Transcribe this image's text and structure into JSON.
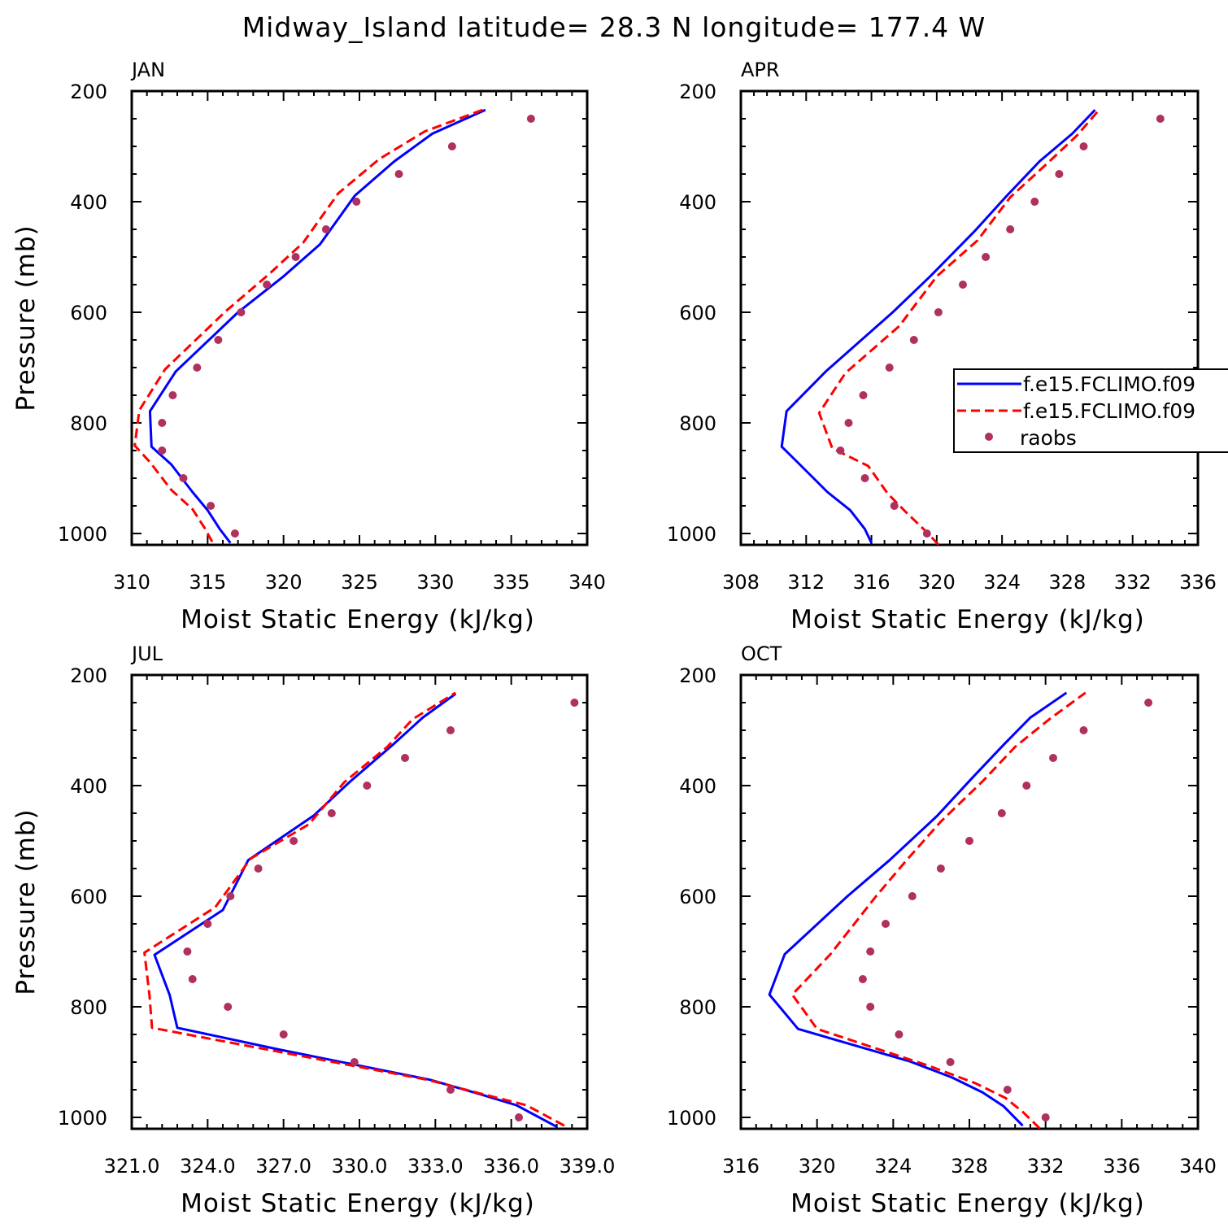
{
  "title": "Midway_Island  latitude= 28.3 N longitude= 177.4 W",
  "legend": {
    "entries": [
      {
        "label": "f.e15.FCLIMO.f09",
        "color": "#0000ff",
        "style": "solid"
      },
      {
        "label": "f.e15.FCLIMO.f09",
        "color": "#ff0000",
        "style": "dashed"
      },
      {
        "label": "raobs",
        "color": "#b03060",
        "style": "dots"
      }
    ],
    "placement": "APR panel, right side, clipped at figure edge"
  },
  "chart_data": [
    {
      "type": "line",
      "panel": "JAN",
      "xlabel": "Moist Static Energy (kJ/kg)",
      "ylabel": "Pressure (mb)",
      "xlim": [
        310,
        340
      ],
      "ylim": [
        1025,
        200
      ],
      "xticks": [
        310,
        315,
        320,
        325,
        330,
        335,
        340
      ],
      "xtick_labels": [
        "310",
        "315",
        "320",
        "325",
        "330",
        "335",
        "340"
      ],
      "yticks": [
        200,
        400,
        600,
        800,
        1000
      ],
      "series": [
        {
          "name": "f.e15.FCLIMO.f09 (blue)",
          "pressure": [
            1017,
            992,
            958,
            925,
            875,
            843,
            779,
            707,
            600,
            535,
            477,
            389,
            327,
            277,
            234
          ],
          "x": [
            316.5,
            315.8,
            315.0,
            314.0,
            312.6,
            311.3,
            311.2,
            312.9,
            317.0,
            320.0,
            322.4,
            324.7,
            327.3,
            329.8,
            333.3
          ]
        },
        {
          "name": "f.e15.FCLIMO.f09 (red dashed)",
          "pressure": [
            1015,
            990,
            956,
            921,
            871,
            841,
            777,
            703,
            598,
            532,
            474,
            385,
            323,
            273,
            232
          ],
          "x": [
            315.3,
            314.8,
            314.0,
            312.6,
            311.2,
            310.2,
            310.5,
            312.2,
            316.2,
            319.0,
            321.3,
            323.6,
            326.3,
            329.3,
            333.3
          ]
        },
        {
          "name": "raobs",
          "pressure": [
            1000,
            950,
            900,
            850,
            800,
            750,
            700,
            650,
            600,
            550,
            500,
            450,
            400,
            350,
            300,
            250
          ],
          "x": [
            316.8,
            315.2,
            313.4,
            312.0,
            312.0,
            312.7,
            314.3,
            315.7,
            317.2,
            318.9,
            320.8,
            322.8,
            324.8,
            327.6,
            331.1,
            336.3
          ]
        }
      ]
    },
    {
      "type": "line",
      "panel": "APR",
      "xlabel": "Moist Static Energy (kJ/kg)",
      "ylabel": "",
      "xlim": [
        308,
        336
      ],
      "ylim": [
        1025,
        200
      ],
      "xticks": [
        308,
        312,
        316,
        320,
        324,
        328,
        332,
        336
      ],
      "xtick_labels": [
        "308",
        "312",
        "316",
        "320",
        "324",
        "328",
        "332",
        "336"
      ],
      "yticks": [
        200,
        400,
        600,
        800,
        1000
      ],
      "series": [
        {
          "name": "f.e15.FCLIMO.f09 (blue)",
          "pressure": [
            1017,
            992,
            958,
            925,
            875,
            843,
            779,
            707,
            600,
            535,
            454,
            389,
            327,
            277,
            234
          ],
          "x": [
            316.0,
            315.6,
            314.7,
            313.3,
            311.6,
            310.5,
            310.8,
            313.2,
            317.3,
            319.6,
            322.3,
            324.3,
            326.3,
            328.3,
            329.7
          ]
        },
        {
          "name": "f.e15.FCLIMO.f09 (red dashed)",
          "pressure": [
            1020,
            995,
            961,
            928,
            878,
            846,
            782,
            710,
            625,
            535,
            470,
            392,
            330,
            280,
            232
          ],
          "x": [
            320.1,
            319.3,
            318.1,
            317.0,
            315.8,
            313.6,
            312.8,
            314.4,
            317.7,
            320.0,
            322.5,
            324.5,
            326.8,
            328.6,
            330.0
          ]
        },
        {
          "name": "raobs",
          "pressure": [
            1000,
            950,
            900,
            850,
            800,
            750,
            700,
            650,
            600,
            550,
            500,
            450,
            400,
            350,
            300,
            250
          ],
          "x": [
            319.4,
            317.4,
            315.6,
            314.1,
            314.6,
            315.5,
            317.1,
            318.6,
            320.1,
            321.6,
            323.0,
            324.5,
            326.0,
            327.5,
            329.0,
            333.7
          ]
        }
      ]
    },
    {
      "type": "line",
      "panel": "JUL",
      "xlabel": "Moist Static Energy (kJ/kg)",
      "ylabel": "Pressure (mb)",
      "xlim": [
        321,
        339
      ],
      "ylim": [
        1025,
        200
      ],
      "xticks": [
        321,
        324,
        327,
        330,
        333,
        336,
        339
      ],
      "xtick_labels": [
        "321.0",
        "324.0",
        "327.0",
        "330.0",
        "333.0",
        "336.0",
        "339.0"
      ],
      "yticks": [
        200,
        400,
        600,
        800,
        1000
      ],
      "series": [
        {
          "name": "f.e15.FCLIMO.f09 (blue)",
          "pressure": [
            1017,
            978,
            957,
            932,
            877,
            838,
            779,
            706,
            625,
            535,
            454,
            394,
            327,
            277,
            234
          ],
          "x": [
            337.8,
            336.2,
            334.7,
            332.8,
            326.8,
            322.8,
            322.5,
            321.9,
            324.6,
            325.6,
            328.2,
            329.6,
            331.3,
            332.5,
            333.8
          ]
        },
        {
          "name": "f.e15.FCLIMO.f09 (red dashed)",
          "pressure": [
            1015,
            978,
            957,
            932,
            882,
            838,
            779,
            702,
            620,
            532,
            470,
            394,
            330,
            280,
            232
          ],
          "x": [
            338.1,
            336.6,
            334.8,
            332.7,
            326.9,
            321.8,
            321.7,
            321.5,
            324.3,
            325.7,
            328.0,
            329.4,
            331.1,
            332.1,
            333.8
          ]
        },
        {
          "name": "raobs",
          "pressure": [
            1000,
            950,
            900,
            850,
            800,
            750,
            700,
            650,
            600,
            550,
            500,
            450,
            400,
            350,
            300,
            250
          ],
          "x": [
            336.3,
            333.6,
            329.8,
            327.0,
            324.8,
            323.4,
            323.2,
            324.0,
            324.9,
            326.0,
            327.4,
            328.9,
            330.3,
            331.8,
            333.6,
            338.5
          ]
        }
      ]
    },
    {
      "type": "line",
      "panel": "OCT",
      "xlabel": "Moist Static Energy (kJ/kg)",
      "ylabel": "",
      "xlim": [
        316,
        340
      ],
      "ylim": [
        1025,
        200
      ],
      "xticks": [
        316,
        320,
        324,
        328,
        332,
        336,
        340
      ],
      "xtick_labels": [
        "316",
        "320",
        "324",
        "328",
        "332",
        "336",
        "340"
      ],
      "yticks": [
        200,
        400,
        600,
        800,
        1000
      ],
      "series": [
        {
          "name": "f.e15.FCLIMO.f09 (blue)",
          "pressure": [
            1015,
            980,
            955,
            928,
            899,
            840,
            778,
            705,
            600,
            535,
            455,
            388,
            326,
            277,
            232
          ],
          "x": [
            330.8,
            329.8,
            328.7,
            327.1,
            324.9,
            319.0,
            317.5,
            318.3,
            321.6,
            323.8,
            326.3,
            328.1,
            329.8,
            331.2,
            333.1
          ]
        },
        {
          "name": "f.e15.FCLIMO.f09 (red dashed)",
          "pressure": [
            1020,
            990,
            965,
            938,
            907,
            840,
            778,
            705,
            600,
            535,
            465,
            392,
            330,
            280,
            232
          ],
          "x": [
            331.7,
            330.8,
            329.9,
            328.3,
            325.9,
            320.0,
            318.7,
            320.7,
            323.1,
            324.7,
            326.5,
            328.7,
            330.4,
            332.2,
            334.1
          ]
        },
        {
          "name": "raobs",
          "pressure": [
            1000,
            950,
            900,
            850,
            800,
            750,
            700,
            650,
            600,
            550,
            500,
            450,
            400,
            350,
            300,
            250
          ],
          "x": [
            332.0,
            330.0,
            327.0,
            324.3,
            322.8,
            322.4,
            322.8,
            323.6,
            325.0,
            326.5,
            328.0,
            329.7,
            331.0,
            332.4,
            334.0,
            337.4
          ]
        }
      ]
    }
  ]
}
